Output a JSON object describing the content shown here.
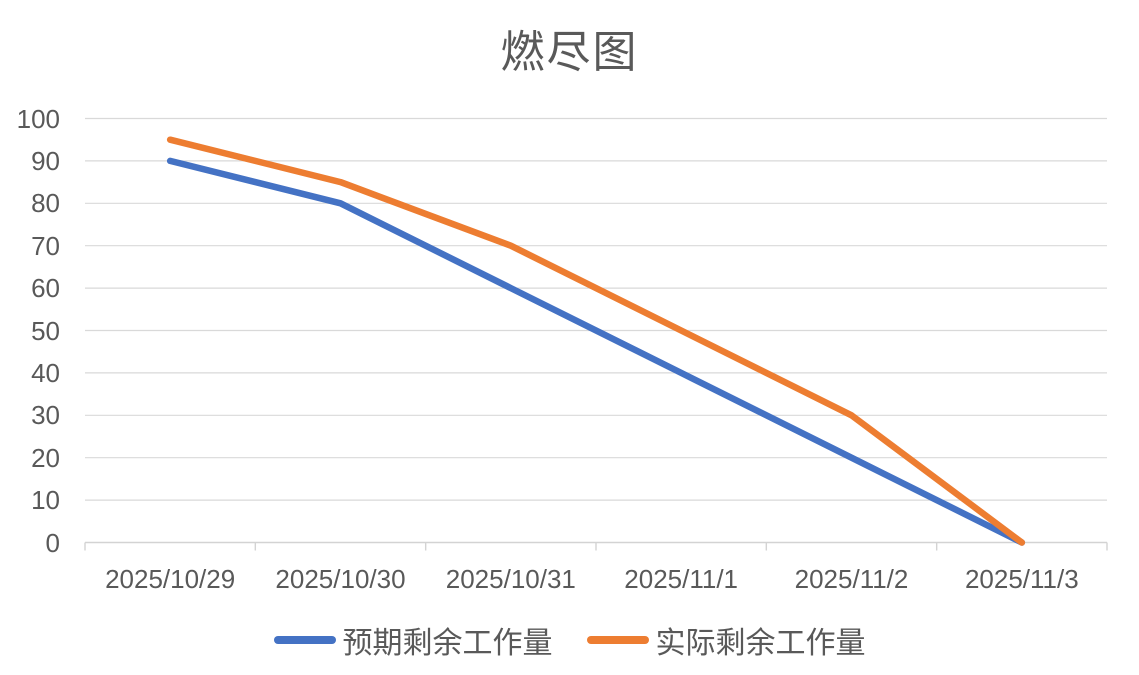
{
  "chart_data": {
    "type": "line",
    "title": "燃尽图",
    "categories": [
      "2025/10/29",
      "2025/10/30",
      "2025/10/31",
      "2025/11/1",
      "2025/11/2",
      "2025/11/3"
    ],
    "series": [
      {
        "name": "预期剩余工作量",
        "color": "#4472C4",
        "values": [
          90,
          80,
          60,
          40,
          20,
          0
        ]
      },
      {
        "name": "实际剩余工作量",
        "color": "#ED7D31",
        "values": [
          95,
          85,
          70,
          50,
          30,
          0
        ]
      }
    ],
    "ylim": [
      0,
      100
    ],
    "yticks": [
      0,
      10,
      20,
      30,
      40,
      50,
      60,
      70,
      80,
      90,
      100
    ],
    "xlabel": "",
    "ylabel": "",
    "grid": "horizontal",
    "legend_position": "bottom",
    "colors": {
      "gridline": "#D9D9D9",
      "axis": "#D3D3D3",
      "text": "#595959"
    }
  }
}
